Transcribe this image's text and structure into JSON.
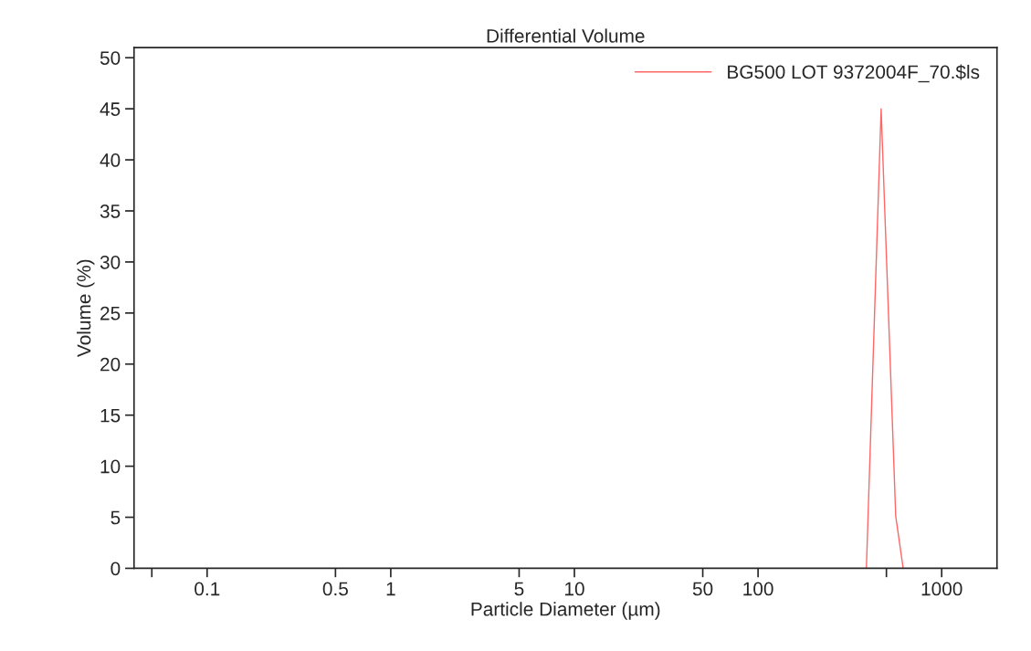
{
  "chart_data": {
    "type": "line",
    "title": "Differential Volume",
    "xlabel": "Particle Diameter (µm)",
    "ylabel": "Volume (%)",
    "log": "x",
    "xlim": [
      0.04,
      2000
    ],
    "ylim": [
      0,
      51
    ],
    "xticks": [
      {
        "value": 0.05,
        "label": null
      },
      0.1,
      0.5,
      1,
      5,
      10,
      50,
      100,
      {
        "value": 500,
        "label": null
      },
      1000
    ],
    "yticks": [
      0,
      5,
      10,
      15,
      20,
      25,
      30,
      35,
      40,
      45,
      50
    ],
    "series": [
      {
        "name": "BG500 LOT 9372004F_70.$ls",
        "color": "#ff6666",
        "x": [
          389,
          468,
          562,
          617
        ],
        "values": [
          0,
          45,
          5.1,
          0
        ]
      }
    ],
    "legend": "top right",
    "grid": false
  }
}
